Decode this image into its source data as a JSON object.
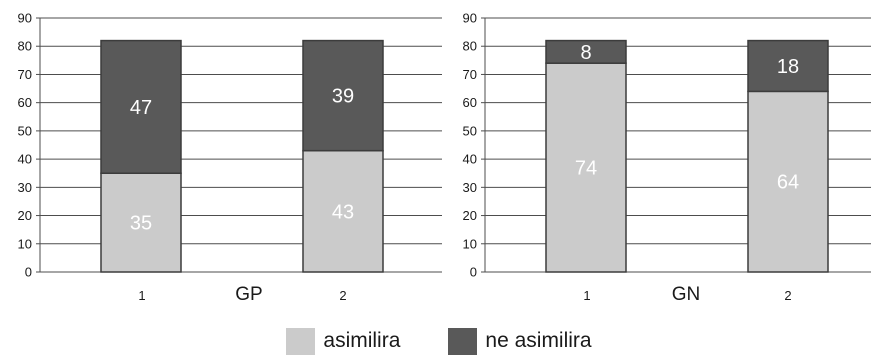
{
  "chart_data": [
    {
      "type": "bar",
      "stacked": true,
      "group_label": "GP",
      "categories": [
        "1",
        "2"
      ],
      "series": [
        {
          "name": "asimilira",
          "values": [
            35,
            43
          ]
        },
        {
          "name": "ne asimilira",
          "values": [
            47,
            39
          ]
        }
      ],
      "ylim": [
        0,
        90
      ],
      "yticks": [
        0,
        10,
        20,
        30,
        40,
        50,
        60,
        70,
        80,
        90
      ],
      "grid": true
    },
    {
      "type": "bar",
      "stacked": true,
      "group_label": "GN",
      "categories": [
        "1",
        "2"
      ],
      "series": [
        {
          "name": "asimilira",
          "values": [
            74,
            64
          ]
        },
        {
          "name": "ne asimilira",
          "values": [
            8,
            18
          ]
        }
      ],
      "ylim": [
        0,
        90
      ],
      "yticks": [
        0,
        10,
        20,
        30,
        40,
        50,
        60,
        70,
        80,
        90
      ],
      "grid": true
    }
  ],
  "legend": {
    "placement": "bottom",
    "items": [
      {
        "label": "asimilira",
        "color": "#cbcbcb"
      },
      {
        "label": "ne asimilira",
        "color": "#595959"
      }
    ]
  },
  "colors": {
    "light_bar": "#cbcbcb",
    "dark_bar": "#595959",
    "light_label": "#ffffff",
    "dark_label": "#ffffff",
    "grid": "#4d4d4d"
  }
}
